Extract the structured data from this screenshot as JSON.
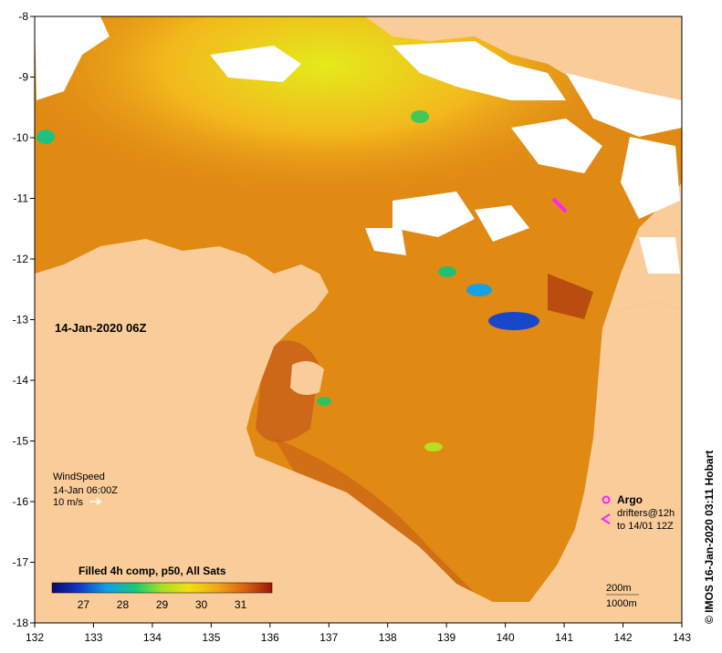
{
  "map": {
    "date_label": "14-Jan-2020 06Z",
    "credit": "© IMOS 16-Jan-2020 03:11 Hobart",
    "lon_ticks": [
      "132",
      "133",
      "134",
      "135",
      "136",
      "137",
      "138",
      "139",
      "140",
      "141",
      "142",
      "143"
    ],
    "lat_ticks": [
      "-8",
      "-9",
      "-10",
      "-11",
      "-12",
      "-13",
      "-14",
      "-15",
      "-16",
      "-17",
      "-18"
    ],
    "lon_range": [
      132,
      143
    ],
    "lat_range": [
      -18,
      -8
    ]
  },
  "wind_legend": {
    "title": "WindSpeed",
    "time": "14-Jan 06:00Z",
    "scale": "10 m/s"
  },
  "argo_legend": {
    "argo": "Argo",
    "drifters": "drifters@12h",
    "to": "to 14/01 12Z"
  },
  "depth_legend": {
    "d200": "200m",
    "d1000": "1000m"
  },
  "colorbar": {
    "title": "Filled 4h comp, p50, All Sats",
    "ticks": [
      "27",
      "28",
      "29",
      "30",
      "31"
    ],
    "colors": {
      "land": "#f9cc9a",
      "cloud": "#ffffff",
      "warm": "#e08a14",
      "hot": "#b4320c",
      "cool": "#e8e010",
      "cold": "#1850c8"
    }
  }
}
